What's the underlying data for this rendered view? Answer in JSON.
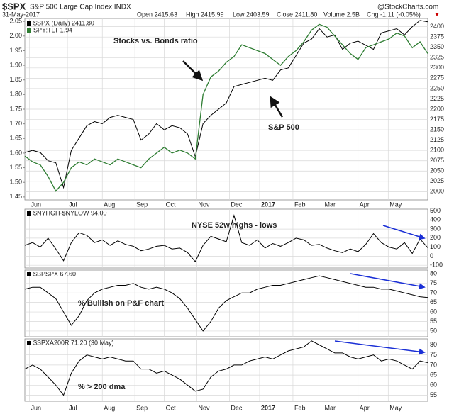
{
  "header": {
    "symbol": "$SPX",
    "name": "S&P 500 Large Cap Index INDX",
    "date": "31-May-2017",
    "open": "Open 2415.63",
    "high": "High 2415.99",
    "low": "Low 2403.59",
    "close": "Close 2411.80",
    "volume": "Volume 2.5B",
    "change": "Chg -1.11 (-0.05%)",
    "source": "@StockCharts.com"
  },
  "chart_data": [
    {
      "type": "line",
      "series": [
        {
          "name": "$SPX (Daily) 2411.80",
          "color": "#000000",
          "axis": "y2",
          "values": [
            2095,
            2100,
            2095,
            2075,
            2070,
            2010,
            2100,
            2130,
            2160,
            2170,
            2165,
            2180,
            2185,
            2180,
            2175,
            2125,
            2140,
            2165,
            2150,
            2160,
            2155,
            2140,
            2085,
            2165,
            2185,
            2200,
            2215,
            2255,
            2260,
            2265,
            2270,
            2275,
            2270,
            2295,
            2300,
            2330,
            2360,
            2370,
            2395,
            2375,
            2380,
            2345,
            2360,
            2365,
            2355,
            2345,
            2385,
            2390,
            2395,
            2380,
            2400,
            2415,
            2411.8
          ]
        },
        {
          "name": "SPY:TLT 1.94",
          "color": "#2e7d32",
          "values": [
            1.59,
            1.57,
            1.56,
            1.52,
            1.47,
            1.5,
            1.55,
            1.57,
            1.56,
            1.58,
            1.57,
            1.56,
            1.58,
            1.57,
            1.56,
            1.55,
            1.58,
            1.6,
            1.62,
            1.6,
            1.61,
            1.6,
            1.58,
            1.8,
            1.86,
            1.88,
            1.91,
            1.93,
            1.97,
            1.96,
            1.95,
            1.94,
            1.92,
            1.9,
            1.93,
            1.95,
            1.98,
            2.02,
            2.04,
            2.03,
            2.0,
            1.97,
            1.94,
            1.92,
            1.96,
            1.97,
            1.98,
            1.99,
            2.01,
            2.0,
            1.96,
            1.98,
            1.94
          ]
        }
      ],
      "xlim": [
        0,
        52
      ],
      "xticks": [
        {
          "value": 0.6,
          "label": "Jun"
        },
        {
          "value": 5.5,
          "label": "Jul"
        },
        {
          "value": 10,
          "label": "Aug"
        },
        {
          "value": 14.2,
          "label": "Sep"
        },
        {
          "value": 18,
          "label": "Oct"
        },
        {
          "value": 22.2,
          "label": "Nov"
        },
        {
          "value": 26.4,
          "label": "Dec"
        },
        {
          "value": 30.3,
          "label": "2017"
        },
        {
          "value": 34.6,
          "label": "Feb"
        },
        {
          "value": 38.5,
          "label": "Mar"
        },
        {
          "value": 43,
          "label": "Apr"
        },
        {
          "value": 46.9,
          "label": "May"
        }
      ],
      "ylim": [
        1.44,
        2.06
      ],
      "yticks": [
        1.45,
        {
          "value": 1.5,
          "label": "1.50"
        },
        1.55,
        {
          "value": 1.6,
          "label": "1.60"
        },
        1.65,
        {
          "value": 1.7,
          "label": "1.70"
        },
        1.75,
        {
          "value": 1.8,
          "label": "1.80"
        },
        1.85,
        {
          "value": 1.9,
          "label": "1.90"
        },
        1.95,
        {
          "value": 2.0,
          "label": "2.00"
        },
        2.05
      ],
      "y2lim": [
        1980,
        2420
      ],
      "y2ticks": [
        2000,
        2025,
        2050,
        2075,
        2100,
        2125,
        2150,
        2175,
        2200,
        2225,
        2250,
        2275,
        2300,
        2325,
        2350,
        2375,
        2400
      ],
      "annotations": [
        "Stocks vs. Bonds ratio",
        "S&P 500"
      ],
      "grid": true
    },
    {
      "type": "line",
      "series": [
        {
          "name": "$NYHGH-$NYLOW 94.00",
          "color": "#000000",
          "values": [
            120,
            150,
            100,
            200,
            80,
            -50,
            150,
            260,
            230,
            150,
            180,
            120,
            170,
            130,
            110,
            60,
            80,
            110,
            120,
            80,
            90,
            40,
            -60,
            120,
            220,
            190,
            160,
            450,
            150,
            120,
            180,
            90,
            140,
            110,
            150,
            200,
            180,
            120,
            130,
            90,
            60,
            40,
            80,
            50,
            130,
            250,
            150,
            100,
            80,
            150,
            30,
            190,
            94
          ]
        }
      ],
      "xlim": [
        0,
        52
      ],
      "ylim": [
        -130,
        520
      ],
      "yticks": [
        -100,
        0,
        100,
        200,
        300,
        400,
        500
      ],
      "annotations": [
        "NYSE 52w highs - lows"
      ],
      "grid": true
    },
    {
      "type": "line",
      "series": [
        {
          "name": "$BPSPX 67.60",
          "color": "#000000",
          "values": [
            72,
            73,
            73,
            70,
            67,
            60,
            53,
            58,
            66,
            70,
            72,
            73,
            74,
            74,
            75,
            73,
            72,
            73,
            72,
            70,
            67,
            62,
            56,
            50,
            55,
            62,
            66,
            68,
            70,
            70,
            72,
            73,
            74,
            74,
            75,
            76,
            77,
            78,
            79,
            78,
            77,
            76,
            75,
            74,
            73,
            73,
            72,
            72,
            71,
            70,
            69,
            68,
            67.6
          ]
        }
      ],
      "xlim": [
        0,
        52
      ],
      "ylim": [
        47,
        82
      ],
      "yticks": [
        50,
        55,
        60,
        65,
        70,
        75,
        80
      ],
      "annotations": [
        "% Bullish on P&F chart"
      ],
      "grid": true
    },
    {
      "type": "line",
      "series": [
        {
          "name": "$SPXA200R 71.20 (30 May)",
          "color": "#000000",
          "values": [
            68,
            70,
            68,
            64,
            60,
            55,
            66,
            72,
            75,
            74,
            73,
            74,
            73,
            72,
            72,
            68,
            68,
            66,
            67,
            65,
            63,
            60,
            57,
            58,
            64,
            67,
            68,
            70,
            70,
            72,
            73,
            74,
            73,
            75,
            77,
            78,
            79,
            82,
            80,
            78,
            76,
            76,
            74,
            73,
            74,
            75,
            72,
            73,
            72,
            70,
            68,
            72,
            71.2
          ]
        }
      ],
      "xlim": [
        0,
        52
      ],
      "xticks": [
        {
          "value": 0.6,
          "label": "Jun"
        },
        {
          "value": 5.5,
          "label": "Jul"
        },
        {
          "value": 10,
          "label": "Aug"
        },
        {
          "value": 14.2,
          "label": "Sep"
        },
        {
          "value": 18,
          "label": "Oct"
        },
        {
          "value": 22.2,
          "label": "Nov"
        },
        {
          "value": 26.4,
          "label": "Dec"
        },
        {
          "value": 30.3,
          "label": "2017"
        },
        {
          "value": 34.6,
          "label": "Feb"
        },
        {
          "value": 38.5,
          "label": "Mar"
        },
        {
          "value": 43,
          "label": "Apr"
        },
        {
          "value": 46.9,
          "label": "May"
        }
      ],
      "ylim": [
        52,
        83
      ],
      "yticks": [
        55,
        60,
        65,
        70,
        75,
        80
      ],
      "annotations": [
        "% > 200 dma"
      ],
      "grid": true
    }
  ]
}
